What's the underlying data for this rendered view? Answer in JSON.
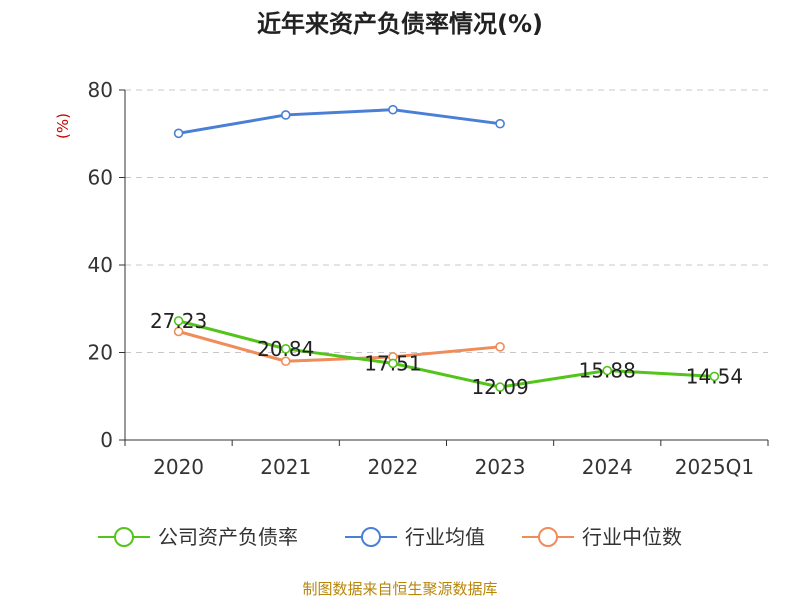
{
  "chart_data": {
    "type": "line",
    "title": "近年来资产负债率情况(%)",
    "ylabel": "(%)",
    "categories": [
      "2020",
      "2021",
      "2022",
      "2023",
      "2024",
      "2025Q1"
    ],
    "y_ticks": [
      "0",
      "20",
      "40",
      "60",
      "80"
    ],
    "ylim": [
      0,
      80
    ],
    "grid": true,
    "legend_position": "bottom",
    "series": [
      {
        "name": "公司资产负债率",
        "color": "#52c41a",
        "values": [
          27.23,
          20.84,
          17.51,
          12.09,
          15.88,
          14.54
        ],
        "labels": [
          "27.23",
          "20.84",
          "17.51",
          "12.09",
          "15.88",
          "14.54"
        ]
      },
      {
        "name": "行业均值",
        "color": "#4a7fd6",
        "values": [
          70.1,
          74.3,
          75.5,
          72.3,
          null,
          null
        ]
      },
      {
        "name": "行业中位数",
        "color": "#f08c5a",
        "values": [
          24.8,
          18.0,
          19.0,
          21.3,
          null,
          null
        ]
      }
    ]
  },
  "source": "制图数据来自恒生聚源数据库"
}
